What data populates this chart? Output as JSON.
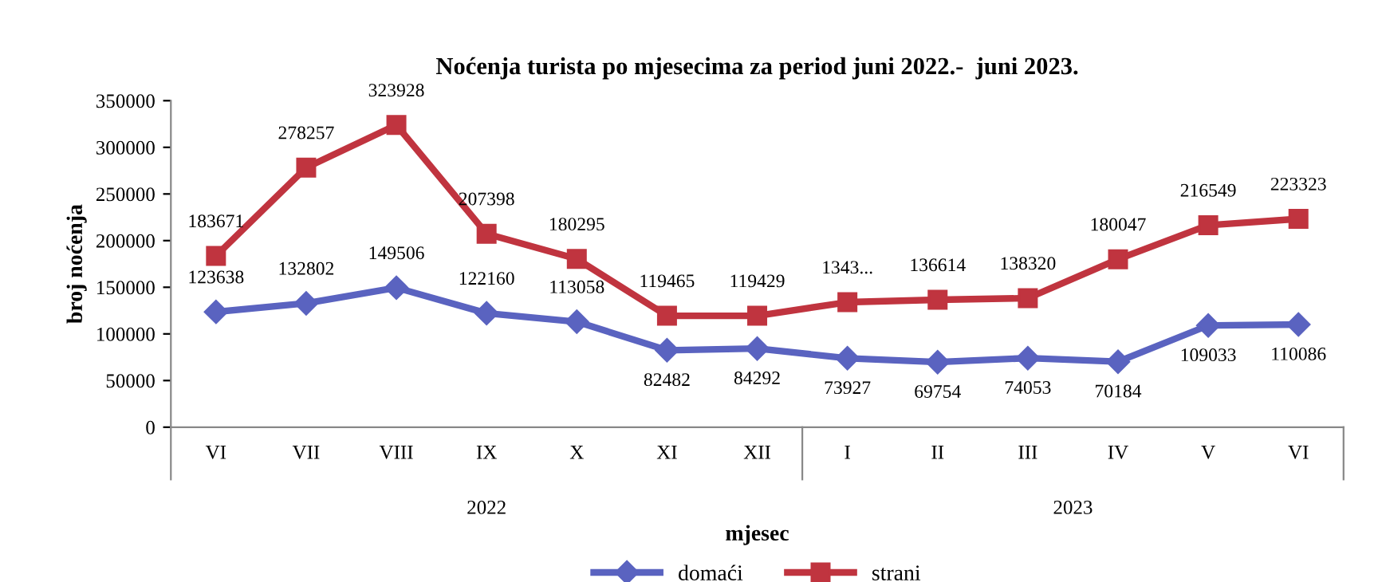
{
  "chart_data": {
    "type": "line",
    "title": "Noćenja turista po mjesecima za period juni 2022.-  juni 2023.",
    "xlabel": "mjesec",
    "ylabel": "broj noćenja",
    "categories": [
      "VI",
      "VII",
      "VIII",
      "IX",
      "X",
      "XI",
      "XII",
      "I",
      "II",
      "III",
      "IV",
      "V",
      "VI"
    ],
    "series": [
      {
        "name": "domaći",
        "color": "#5a63c0",
        "marker": "diamond",
        "values": [
          123638,
          132802,
          149506,
          122160,
          113058,
          82482,
          84292,
          73927,
          69754,
          74053,
          70184,
          109033,
          110086
        ],
        "value_labels": [
          "123638",
          "132802",
          "149506",
          "122160",
          "113058",
          "82482",
          "84292",
          "73927",
          "69754",
          "74053",
          "70184",
          "109033",
          "110086"
        ]
      },
      {
        "name": "strani",
        "color": "#c0343f",
        "marker": "square",
        "values": [
          183671,
          278257,
          323928,
          207398,
          180295,
          119465,
          119429,
          134000,
          136614,
          138320,
          180047,
          216549,
          223323
        ],
        "value_labels": [
          "183671",
          "278257",
          "323928",
          "207398",
          "180295",
          "119465",
          "119429",
          "1343...",
          "136614",
          "138320",
          "180047",
          "216549",
          "223323"
        ]
      }
    ],
    "annotations": [
      "2022",
      "2023"
    ],
    "ylim": [
      0,
      350000
    ],
    "yticks": [
      0,
      50000,
      100000,
      150000,
      200000,
      250000,
      300000,
      350000
    ],
    "grid": false,
    "legend": "bottom",
    "line_style": "solid"
  }
}
